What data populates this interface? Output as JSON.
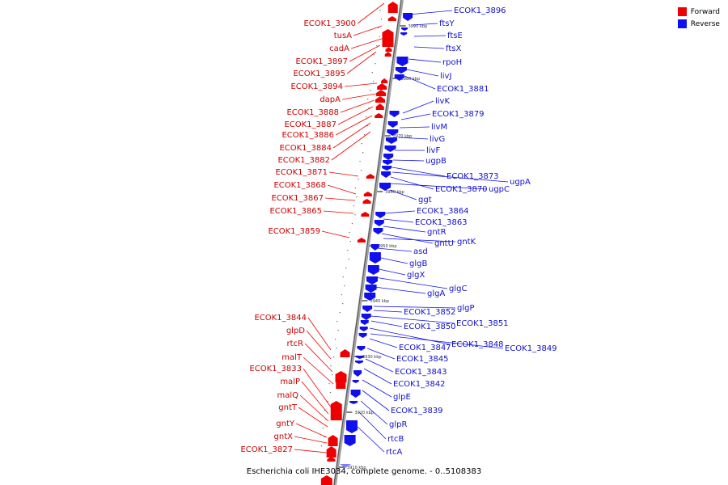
{
  "legend": {
    "forward_label": "Forward",
    "reverse_label": "Reverse",
    "forward_color": "#ee0000",
    "reverse_color": "#1010ee"
  },
  "caption": "Escherichia coli IHE3034, complete genome. - 0..5108383",
  "forward_labels": [
    "ECOK1_3900",
    "tusA",
    "cadA",
    "ECOK1_3897",
    "ECOK1_3895",
    "ECOK1_3894",
    "dapA",
    "ECOK1_3888",
    "ECOK1_3887",
    "ECOK1_3886",
    "ECOK1_3884",
    "ECOK1_3882",
    "ECOK1_3871",
    "ECOK1_3868",
    "ECOK1_3867",
    "ECOK1_3865",
    "ECOK1_3859",
    "ECOK1_3844",
    "glpD",
    "rtcR",
    "malT",
    "ECOK1_3833",
    "malP",
    "malQ",
    "gntT",
    "gntY",
    "gntX",
    "ECOK1_3827"
  ],
  "reverse_labels": [
    "ECOK1_3896",
    "ftsY",
    "ftsE",
    "ftsX",
    "rpoH",
    "livJ",
    "ECOK1_3881",
    "livK",
    "ECOK1_3879",
    "livM",
    "livG",
    "livF",
    "ugpB",
    "ECOK1_3873",
    "ugpA",
    "ECOK1_3870",
    "ugpC",
    "ggt",
    "ECOK1_3864",
    "ECOK1_3863",
    "gntR",
    "gntU",
    "gntK",
    "asd",
    "glgB",
    "glgX",
    "glgC",
    "glgA",
    "glgP",
    "ECOK1_3852",
    "ECOK1_3851",
    "ECOK1_3850",
    "ECOK1_3848",
    "ECOK1_3849",
    "ECOK1_3847",
    "ECOK1_3845",
    "ECOK1_3843",
    "ECOK1_3842",
    "glpE",
    "ECOK1_3839",
    "glpR",
    "rtcB",
    "rtcA"
  ],
  "ticks": [
    "3990 kbp",
    "3980 kbp",
    "3970 kbp",
    "3960 kbp",
    "3950 kbp",
    "3940 kbp",
    "3930 kbp",
    "3920 kbp",
    "3910 kbp"
  ]
}
